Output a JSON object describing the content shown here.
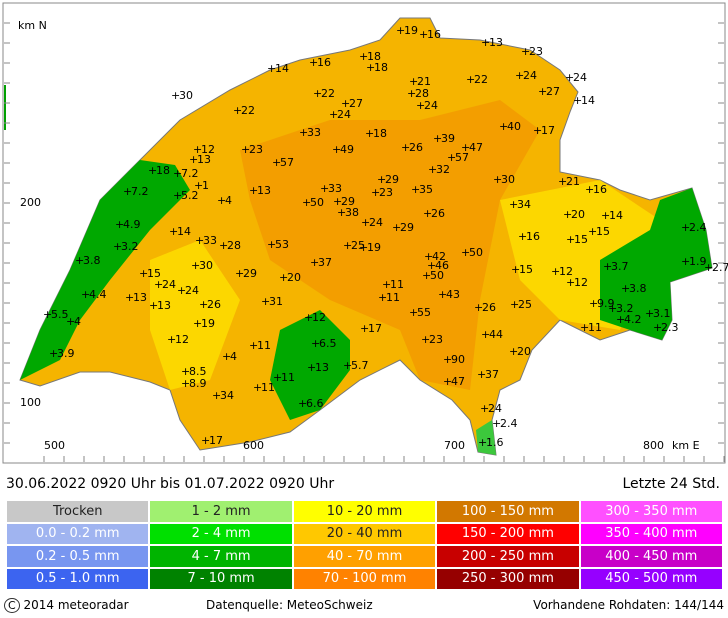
{
  "map": {
    "y_axis_label": "km N",
    "x_axis_label": "km E",
    "yticks": [
      200,
      100
    ],
    "xticks": [
      500,
      600,
      700,
      800
    ],
    "stations": [
      19,
      16,
      13,
      23,
      18,
      18,
      16,
      14,
      21,
      22,
      24,
      24,
      30,
      22,
      28,
      27,
      14,
      27,
      22,
      24,
      24,
      40,
      17,
      33,
      18,
      39,
      12,
      23,
      49,
      26,
      47,
      57,
      13,
      57,
      32,
      18,
      7.2,
      29,
      21,
      30,
      16,
      1,
      7.2,
      13,
      33,
      23,
      35,
      5.2,
      4,
      50,
      29,
      34,
      38,
      26,
      20,
      14,
      4.9,
      24,
      29,
      15,
      2.4,
      14,
      33,
      28,
      53,
      16,
      15,
      25,
      19,
      3.2,
      42,
      50,
      1.9,
      2.7,
      3.8,
      30,
      37,
      46,
      3.7,
      15,
      29,
      20,
      15,
      12,
      50,
      24,
      11,
      12,
      4.4,
      24,
      13,
      43,
      11,
      31,
      3.8,
      26,
      13,
      25,
      26,
      9.9,
      5.5,
      3.2,
      3.1,
      4,
      55,
      4.2,
      2.3,
      12,
      19,
      11,
      17,
      44,
      12,
      23,
      6.5,
      11,
      20,
      3.9,
      4,
      90,
      5.7,
      13,
      8.5,
      37,
      11,
      11,
      8.9,
      47,
      34,
      6.6,
      24,
      2.4,
      17,
      1.6
    ]
  },
  "header": {
    "period": "30.06.2022 0920 Uhr   bis   01.07.2022 0920 Uhr",
    "span": "Letzte 24 Std."
  },
  "legend": {
    "columns": [
      [
        {
          "label": "Trocken",
          "color": "#c8c8c8"
        },
        {
          "label": "0.0 - 0.2 mm",
          "color": "#a0b4f0"
        },
        {
          "label": "0.2 - 0.5 mm",
          "color": "#7896f0"
        },
        {
          "label": "0.5 - 1.0 mm",
          "color": "#3c64f0"
        }
      ],
      [
        {
          "label": "1 - 2 mm",
          "color": "#a0f070"
        },
        {
          "label": "2 - 4 mm",
          "color": "#00e000"
        },
        {
          "label": "4 - 7 mm",
          "color": "#00b400"
        },
        {
          "label": "7 - 10 mm",
          "color": "#008200"
        }
      ],
      [
        {
          "label": "10 - 20 mm",
          "color": "#ffff00"
        },
        {
          "label": "20 - 40 mm",
          "color": "#ffc800"
        },
        {
          "label": "40 - 70 mm",
          "color": "#ffa000"
        },
        {
          "label": "70 - 100 mm",
          "color": "#ff8200"
        }
      ],
      [
        {
          "label": "100 - 150 mm",
          "color": "#d27800"
        },
        {
          "label": "150 - 200 mm",
          "color": "#ff0000"
        },
        {
          "label": "200 - 250 mm",
          "color": "#c80000"
        },
        {
          "label": "250 - 300 mm",
          "color": "#960000"
        }
      ],
      [
        {
          "label": "300 - 350 mm",
          "color": "#ff50ff"
        },
        {
          "label": "350 - 400 mm",
          "color": "#ff00ff"
        },
        {
          "label": "400 - 450 mm",
          "color": "#c800c8"
        },
        {
          "label": "450 - 500 mm",
          "color": "#9600ff"
        }
      ]
    ]
  },
  "footer": {
    "copyright": "2014 meteoradar",
    "source": "Datenquelle: MeteoSchweiz",
    "raw": "Vorhandene Rohdaten: 144/144"
  }
}
